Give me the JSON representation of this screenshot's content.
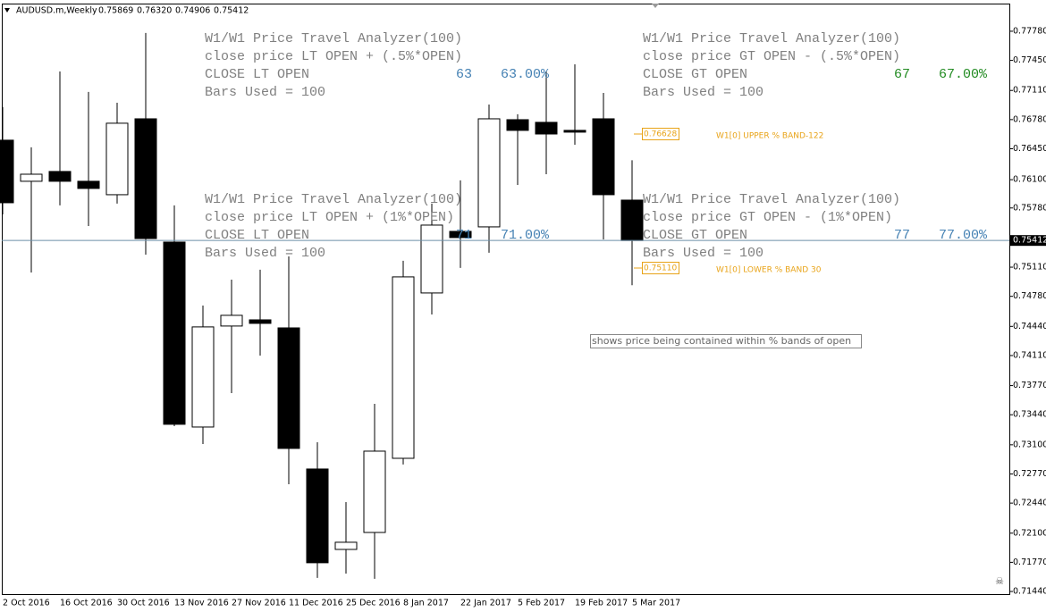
{
  "header": {
    "symbol": "AUDUSD.m,Weekly",
    "ohlc": [
      "0.75869",
      "0.76320",
      "0.74906",
      "0.75412"
    ]
  },
  "chart_data": {
    "type": "candlestick",
    "categories": [
      "2 Oct 2016",
      null,
      "16 Oct 2016",
      null,
      "30 Oct 2016",
      null,
      "13 Nov 2016",
      null,
      "27 Nov 2016",
      null,
      "11 Dec 2016",
      null,
      "25 Dec 2016",
      null,
      "8 Jan 2017",
      null,
      "22 Jan 2017",
      null,
      "5 Feb 2017",
      null,
      "19 Feb 2017",
      null,
      "5 Mar 2017"
    ],
    "open": [
      0.76547,
      0.76082,
      0.76193,
      0.76082,
      0.7593,
      0.76789,
      0.75394,
      0.73301,
      0.74444,
      0.74514,
      0.74423,
      0.72826,
      0.71916,
      0.72108,
      0.72947,
      0.74818,
      0.75515,
      0.75566,
      0.76779,
      0.76749,
      0.76658,
      0.76789,
      0.75869
    ],
    "high": [
      0.76921,
      0.76466,
      0.77325,
      0.77093,
      0.76971,
      0.7776,
      0.75809,
      0.74676,
      0.74969,
      0.75081,
      0.75232,
      0.73129,
      0.72452,
      0.73564,
      0.75182,
      0.75829,
      0.76092,
      0.76951,
      0.7684,
      0.77325,
      0.77406,
      0.77082,
      0.7632
    ],
    "low": [
      0.75707,
      0.7505,
      0.75809,
      0.75576,
      0.75829,
      0.75252,
      0.73311,
      0.73109,
      0.73685,
      0.7411,
      0.72654,
      0.71593,
      0.71643,
      0.71583,
      0.72877,
      0.74575,
      0.75101,
      0.75273,
      0.76041,
      0.76162,
      0.76496,
      0.75424,
      0.74906
    ],
    "close": [
      0.75839,
      0.76162,
      0.76082,
      0.76001,
      0.76739,
      0.75434,
      0.73332,
      0.74434,
      0.74565,
      0.74474,
      0.73059,
      0.71765,
      0.71997,
      0.73028,
      0.75,
      0.75586,
      0.75445,
      0.76789,
      0.76658,
      0.76617,
      0.76638,
      0.7593,
      0.75412
    ],
    "up_color": "#ffffff",
    "down_color": "#000000",
    "ylim": [
      0.7141,
      0.78093
    ],
    "yticks": [
      {
        "value": 0.7778,
        "label": "0.77780"
      },
      {
        "value": 0.7745,
        "label": "0.77450"
      },
      {
        "value": 0.7711,
        "label": "0.77110"
      },
      {
        "value": 0.7678,
        "label": "0.76780"
      },
      {
        "value": 0.7645,
        "label": "0.76450"
      },
      {
        "value": 0.761,
        "label": "0.76100"
      },
      {
        "value": 0.7578,
        "label": "0.75780"
      },
      {
        "value": 0.7511,
        "label": "0.75110"
      },
      {
        "value": 0.7478,
        "label": "0.74780"
      },
      {
        "value": 0.7444,
        "label": "0.74440"
      },
      {
        "value": 0.7411,
        "label": "0.74110"
      },
      {
        "value": 0.7377,
        "label": "0.73770"
      },
      {
        "value": 0.7344,
        "label": "0.73440"
      },
      {
        "value": 0.731,
        "label": "0.73100"
      },
      {
        "value": 0.7277,
        "label": "0.72770"
      },
      {
        "value": 0.7244,
        "label": "0.72440"
      },
      {
        "value": 0.721,
        "label": "0.72100"
      },
      {
        "value": 0.7177,
        "label": "0.71770"
      },
      {
        "value": 0.7144,
        "label": "0.71440"
      }
    ],
    "current_price": {
      "value": 0.75412,
      "label": "0.75412"
    },
    "grid": false
  },
  "panels": [
    {
      "lines": [
        "W1/W1 Price Travel Analyzer(100)",
        "close price LT OPEN + (.5%*OPEN)",
        "CLOSE LT OPEN",
        "Bars Used = 100"
      ],
      "count": "63",
      "percent": "63.00%",
      "color": "#4682b4"
    },
    {
      "lines": [
        "W1/W1 Price Travel Analyzer(100)",
        "close price GT OPEN - (.5%*OPEN)",
        "CLOSE GT OPEN",
        "Bars Used = 100"
      ],
      "count": "67",
      "percent": "67.00%",
      "color": "#228b22"
    },
    {
      "lines": [
        "W1/W1 Price Travel Analyzer(100)",
        "close price LT OPEN + (1%*OPEN)",
        "CLOSE LT OPEN",
        "Bars Used = 100"
      ],
      "count": "71",
      "percent": "71.00%",
      "color": "#4682b4"
    },
    {
      "lines": [
        "W1/W1 Price Travel Analyzer(100)",
        "close price GT OPEN - (1%*OPEN)",
        "CLOSE GT OPEN",
        "Bars Used = 100"
      ],
      "count": "77",
      "percent": "77.00%",
      "color": "#4682b4"
    }
  ],
  "bands": [
    {
      "price": "0.76628",
      "label": "W1[0] UPPER % BAND-122"
    },
    {
      "price": "0.75110",
      "label": "W1[0] LOWER % BAND 30"
    }
  ],
  "note": "shows price being contained within % bands of open"
}
